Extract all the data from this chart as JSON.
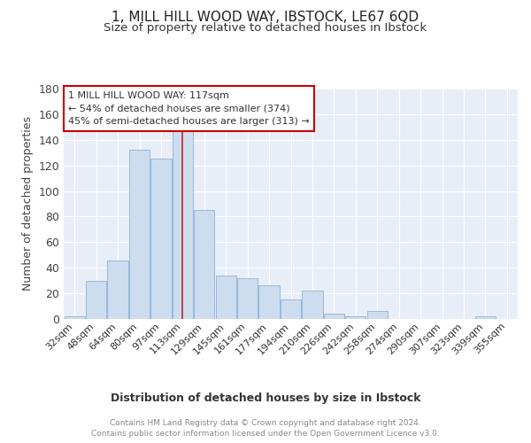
{
  "title": "1, MILL HILL WOOD WAY, IBSTOCK, LE67 6QD",
  "subtitle": "Size of property relative to detached houses in Ibstock",
  "xlabel": "Distribution of detached houses by size in Ibstock",
  "ylabel": "Number of detached properties",
  "categories": [
    "32sqm",
    "48sqm",
    "64sqm",
    "80sqm",
    "97sqm",
    "113sqm",
    "129sqm",
    "145sqm",
    "161sqm",
    "177sqm",
    "194sqm",
    "210sqm",
    "226sqm",
    "242sqm",
    "258sqm",
    "274sqm",
    "290sqm",
    "307sqm",
    "323sqm",
    "339sqm",
    "355sqm"
  ],
  "values": [
    2,
    30,
    46,
    132,
    125,
    149,
    85,
    34,
    32,
    26,
    15,
    22,
    4,
    2,
    6,
    0,
    0,
    0,
    0,
    2,
    0
  ],
  "bar_color": "#ccddf0",
  "bar_edge_color": "#9ab8d8",
  "red_line_x": 5.0,
  "annotation_text": "1 MILL HILL WOOD WAY: 117sqm\n← 54% of detached houses are smaller (374)\n45% of semi-detached houses are larger (313) →",
  "annotation_box_color": "#ffffff",
  "annotation_box_edge_color": "#cc0000",
  "footer_text": "Contains HM Land Registry data © Crown copyright and database right 2024.\nContains public sector information licensed under the Open Government Licence v3.0.",
  "ylim": [
    0,
    180
  ],
  "background_color": "#e8eef8",
  "grid_color": "#ffffff",
  "title_fontsize": 11,
  "subtitle_fontsize": 9.5,
  "tick_fontsize": 8,
  "ylabel_fontsize": 9,
  "xlabel_fontsize": 9,
  "footer_fontsize": 6.5
}
